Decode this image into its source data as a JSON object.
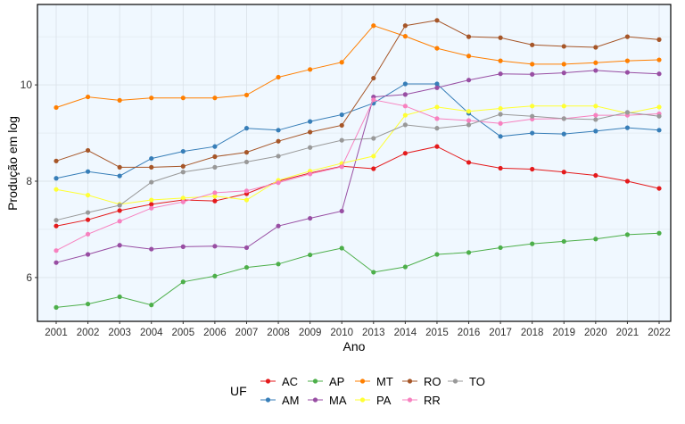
{
  "chart_data": {
    "type": "line",
    "title": "",
    "xlabel": "Ano",
    "ylabel": "Produção em log",
    "categories": [
      "2001",
      "2002",
      "2003",
      "2004",
      "2005",
      "2006",
      "2007",
      "2008",
      "2009",
      "2010",
      "2013",
      "2014",
      "2015",
      "2016",
      "2017",
      "2018",
      "2019",
      "2020",
      "2021",
      "2022"
    ],
    "yticks": [
      6,
      8,
      10
    ],
    "ylim": [
      5.09,
      11.67
    ],
    "grid": true,
    "legend": {
      "title": "UF",
      "placement": "bottom"
    },
    "panel_background": "#F0F8FF",
    "series": [
      {
        "name": "AC",
        "color": "#E41A1C",
        "values": [
          7.07,
          7.2,
          7.39,
          7.52,
          7.61,
          7.59,
          7.74,
          8.0,
          8.17,
          8.31,
          8.26,
          8.58,
          8.72,
          8.39,
          8.27,
          8.25,
          8.19,
          8.12,
          8.0,
          7.85
        ]
      },
      {
        "name": "AM",
        "color": "#377EB8",
        "values": [
          8.06,
          8.2,
          8.11,
          8.47,
          8.62,
          8.72,
          9.1,
          9.06,
          9.24,
          9.38,
          9.62,
          10.02,
          10.02,
          9.41,
          8.93,
          9.0,
          8.98,
          9.04,
          9.11,
          9.06
        ]
      },
      {
        "name": "AP",
        "color": "#4DAF4A",
        "values": [
          5.38,
          5.45,
          5.6,
          5.43,
          5.91,
          6.03,
          6.21,
          6.28,
          6.47,
          6.61,
          6.11,
          6.22,
          6.48,
          6.52,
          6.62,
          6.7,
          6.75,
          6.8,
          6.89,
          6.92
        ]
      },
      {
        "name": "MA",
        "color": "#984EA3",
        "values": [
          6.31,
          6.48,
          6.67,
          6.59,
          6.64,
          6.65,
          6.62,
          7.07,
          7.23,
          7.38,
          9.75,
          9.8,
          9.94,
          10.1,
          10.23,
          10.22,
          10.25,
          10.3,
          10.26,
          10.23
        ]
      },
      {
        "name": "MT",
        "color": "#FF7F00",
        "values": [
          9.53,
          9.75,
          9.68,
          9.73,
          9.73,
          9.73,
          9.79,
          10.16,
          10.32,
          10.47,
          11.23,
          11.01,
          10.76,
          10.6,
          10.5,
          10.43,
          10.43,
          10.46,
          10.5,
          10.52
        ]
      },
      {
        "name": "PA",
        "color": "#FFFF33",
        "values": [
          7.83,
          7.71,
          7.52,
          7.61,
          7.65,
          7.69,
          7.61,
          8.02,
          8.21,
          8.37,
          8.52,
          9.37,
          9.54,
          9.45,
          9.51,
          9.56,
          9.56,
          9.56,
          9.41,
          9.54
        ]
      },
      {
        "name": "RO",
        "color": "#A65628",
        "values": [
          8.42,
          8.64,
          8.29,
          8.29,
          8.31,
          8.51,
          8.6,
          8.83,
          9.02,
          9.16,
          10.14,
          11.23,
          11.34,
          11.0,
          10.98,
          10.83,
          10.8,
          10.78,
          11.0,
          10.94
        ]
      },
      {
        "name": "RR",
        "color": "#F781BF",
        "values": [
          6.56,
          6.9,
          7.17,
          7.44,
          7.57,
          7.76,
          7.8,
          7.97,
          8.15,
          8.3,
          9.69,
          9.56,
          9.3,
          9.26,
          9.2,
          9.29,
          9.3,
          9.37,
          9.37,
          9.4
        ]
      },
      {
        "name": "TO",
        "color": "#999999",
        "values": [
          7.19,
          7.35,
          7.5,
          7.98,
          8.19,
          8.29,
          8.4,
          8.52,
          8.7,
          8.85,
          8.89,
          9.17,
          9.1,
          9.17,
          9.39,
          9.35,
          9.3,
          9.28,
          9.43,
          9.35
        ]
      }
    ]
  }
}
